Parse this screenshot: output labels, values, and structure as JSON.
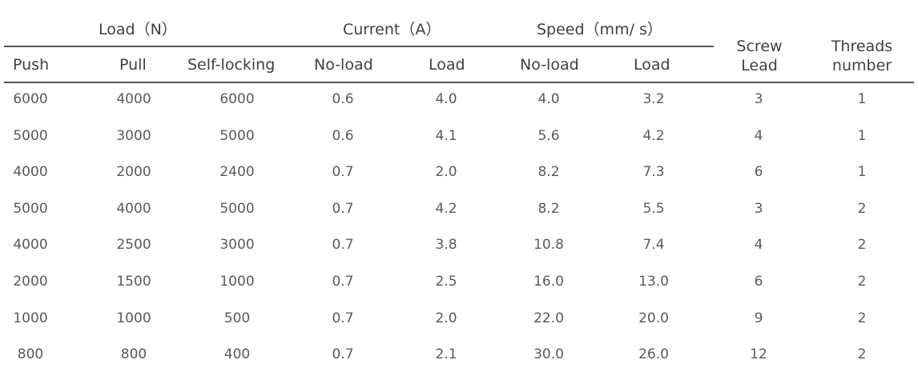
{
  "table": {
    "group_headers": {
      "load": "Load（N）",
      "current": "Current（A）",
      "speed": "Speed（mm/ s）"
    },
    "headers": {
      "push": "Push",
      "pull": "Pull",
      "self_locking": "Self-locking",
      "current_no_load": "No-load",
      "current_load": "Load",
      "speed_no_load": "No-load",
      "speed_load": "Load",
      "screw_lead_line1": "Screw",
      "screw_lead_line2": "Lead",
      "threads_line1": "Threads",
      "threads_line2": "number"
    },
    "rows": [
      [
        "6000",
        "4000",
        "6000",
        "0.6",
        "4.0",
        "4.0",
        "3.2",
        "3",
        "1"
      ],
      [
        "5000",
        "3000",
        "5000",
        "0.6",
        "4.1",
        "5.6",
        "4.2",
        "4",
        "1"
      ],
      [
        "4000",
        "2000",
        "2400",
        "0.7",
        "2.0",
        "8.2",
        "7.3",
        "6",
        "1"
      ],
      [
        "5000",
        "4000",
        "5000",
        "0.7",
        "4.2",
        "8.2",
        "5.5",
        "3",
        "2"
      ],
      [
        "4000",
        "2500",
        "3000",
        "0.7",
        "3.8",
        "10.8",
        "7.4",
        "4",
        "2"
      ],
      [
        "2000",
        "1500",
        "1000",
        "0.7",
        "2.5",
        "16.0",
        "13.0",
        "6",
        "2"
      ],
      [
        "1000",
        "1000",
        "500",
        "0.7",
        "2.0",
        "22.0",
        "20.0",
        "9",
        "2"
      ],
      [
        "800",
        "800",
        "400",
        "0.7",
        "2.1",
        "30.0",
        "26.0",
        "12",
        "2"
      ]
    ]
  }
}
